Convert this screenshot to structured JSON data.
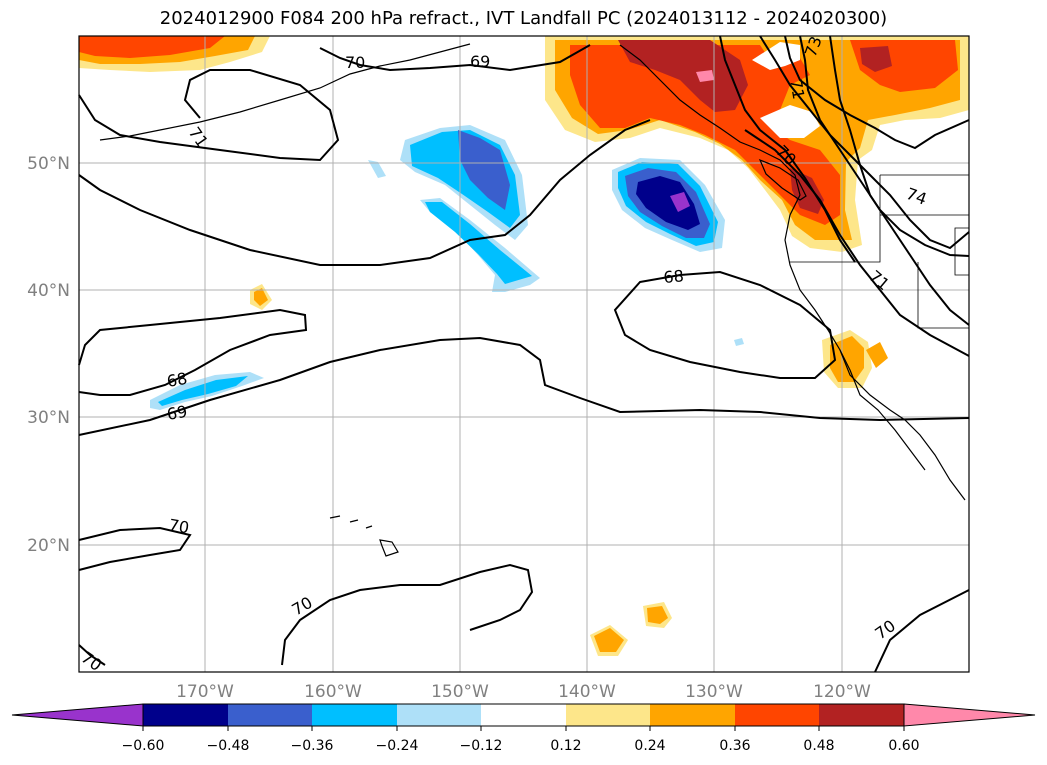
{
  "title": "2024012900 F084 200 hPa refract., IVT Landfall PC (2024013112 - 2024020300)",
  "map": {
    "lat_labels": [
      "50°N",
      "40°N",
      "30°N",
      "20°N"
    ],
    "lon_labels": [
      "170°W",
      "160°W",
      "150°W",
      "140°W",
      "130°W",
      "120°W"
    ],
    "contour_labels": [
      "70",
      "69",
      "71",
      "68",
      "69",
      "68",
      "70",
      "70",
      "70",
      "70",
      "71",
      "74",
      "73",
      "70",
      "71"
    ]
  },
  "colorbar": {
    "ticks": [
      "−0.60",
      "−0.48",
      "−0.36",
      "−0.24",
      "−0.12",
      "0.12",
      "0.24",
      "0.36",
      "0.48",
      "0.60"
    ],
    "colors": [
      "#9933cc",
      "#00008b",
      "#3a5fcd",
      "#00bfff",
      "#aee0f8",
      "#ffffff",
      "#fde68a",
      "#ffa500",
      "#ff4500",
      "#b22222",
      "#ff88aa"
    ]
  }
}
